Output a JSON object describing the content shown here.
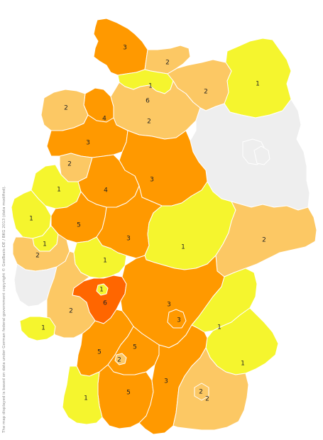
{
  "attribution": "The map displayed is based on data under German federal government copyright © GeoBasis-DE / BKG 2013 (data modified).",
  "colors": {
    "0": "#eeeeee",
    "1": "#f5f52e",
    "2": "#fcc864",
    "3": "#ff9900",
    "4": "#ff9900",
    "5": "#ff9900",
    "6": "#ff6600",
    "border": "#ffffff"
  },
  "regions": [
    {
      "name": "schleswig-holstein",
      "value": "3"
    },
    {
      "name": "mecklenburg-west",
      "value": "2"
    },
    {
      "name": "mecklenburg-east",
      "value": "1"
    },
    {
      "name": "hamburg-ring",
      "value": "1"
    },
    {
      "name": "hamburg-core",
      "value": "6"
    },
    {
      "name": "bremen",
      "value": "4"
    },
    {
      "name": "lower-saxony-coast",
      "value": "2"
    },
    {
      "name": "lower-saxony-central",
      "value": "2"
    },
    {
      "name": "lower-saxony-west",
      "value": "3"
    },
    {
      "name": "lower-saxony-hanover",
      "value": "2"
    },
    {
      "name": "lower-saxony-east",
      "value": "3"
    },
    {
      "name": "brandenburg",
      "value": ""
    },
    {
      "name": "saxony-anhalt",
      "value": ""
    },
    {
      "name": "nrw-north",
      "value": "2"
    },
    {
      "name": "nrw-muenster",
      "value": "1"
    },
    {
      "name": "nrw-west",
      "value": "1"
    },
    {
      "name": "nrw-bielefeld",
      "value": "4"
    },
    {
      "name": "nrw-ruhr",
      "value": "5"
    },
    {
      "name": "nrw-bonn",
      "value": "1"
    },
    {
      "name": "hesse-north",
      "value": "3"
    },
    {
      "name": "rhineland-palatinate-north",
      "value": "2"
    },
    {
      "name": "hesse-central",
      "value": "1"
    },
    {
      "name": "thuringia",
      "value": "1"
    },
    {
      "name": "saxony",
      "value": "2"
    },
    {
      "name": "saarland-region",
      "value": ""
    },
    {
      "name": "frankfurt-metro",
      "value": "6"
    },
    {
      "name": "frankfurt-inner",
      "value": "1"
    },
    {
      "name": "rhineland-palatinate-south",
      "value": "2"
    },
    {
      "name": "pfalz-south",
      "value": "1"
    },
    {
      "name": "franconia",
      "value": "3"
    },
    {
      "name": "nuremberg",
      "value": "3"
    },
    {
      "name": "upper-palatinate",
      "value": "1"
    },
    {
      "name": "lower-bavaria",
      "value": "1"
    },
    {
      "name": "bw-north",
      "value": "5"
    },
    {
      "name": "stuttgart",
      "value": "5"
    },
    {
      "name": "stuttgart-core",
      "value": "2"
    },
    {
      "name": "bw-south-central",
      "value": "5"
    },
    {
      "name": "swabia",
      "value": "3"
    },
    {
      "name": "upper-bavaria",
      "value": "2"
    },
    {
      "name": "munich",
      "value": "2"
    },
    {
      "name": "bw-southwest",
      "value": "1"
    },
    {
      "name": "berlin",
      "value": ""
    }
  ]
}
